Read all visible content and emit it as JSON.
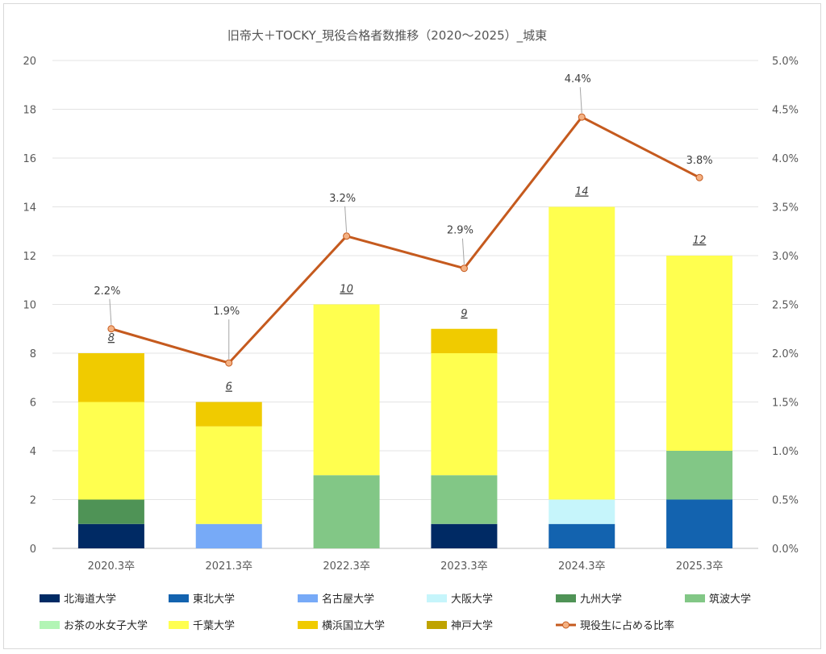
{
  "chart_data": {
    "type": "bar",
    "stacked": true,
    "title": "旧帝大＋TOCKY_現役合格者数推移（2020〜2025）_城東",
    "categories": [
      "2020.3卒",
      "2021.3卒",
      "2022.3卒",
      "2023.3卒",
      "2024.3卒",
      "2025.3卒"
    ],
    "ylim": [
      0,
      20
    ],
    "yticks": [
      "0",
      "2",
      "4",
      "6",
      "8",
      "10",
      "12",
      "14",
      "16",
      "18",
      "20"
    ],
    "y2lim": [
      0,
      5.0
    ],
    "y2ticks": [
      "0.0%",
      "0.5%",
      "1.0%",
      "1.5%",
      "2.0%",
      "2.5%",
      "3.0%",
      "3.5%",
      "4.0%",
      "4.5%",
      "5.0%"
    ],
    "grid": true,
    "legend_position": "bottom",
    "series": [
      {
        "name": "北海道大学",
        "color": "#002a64",
        "values": [
          1,
          0,
          0,
          1,
          0,
          0
        ]
      },
      {
        "name": "東北大学",
        "color": "#1363af",
        "values": [
          0,
          0,
          0,
          0,
          1,
          2
        ]
      },
      {
        "name": "名古屋大学",
        "color": "#77aaf7",
        "values": [
          0,
          1,
          0,
          0,
          0,
          0
        ]
      },
      {
        "name": "大阪大学",
        "color": "#c6f5fb",
        "values": [
          0,
          0,
          0,
          0,
          1,
          0
        ]
      },
      {
        "name": "九州大学",
        "color": "#4f9356",
        "values": [
          1,
          0,
          0,
          0,
          0,
          0
        ]
      },
      {
        "name": "筑波大学",
        "color": "#82c786",
        "values": [
          0,
          0,
          3,
          2,
          0,
          2
        ]
      },
      {
        "name": "お茶の水女子大学",
        "color": "#b2f5b5",
        "values": [
          0,
          0,
          0,
          0,
          0,
          0
        ]
      },
      {
        "name": "千葉大学",
        "color": "#ffff4f",
        "values": [
          4,
          4,
          7,
          5,
          12,
          8
        ]
      },
      {
        "name": "横浜国立大学",
        "color": "#f0cb00",
        "values": [
          2,
          1,
          0,
          1,
          0,
          0
        ]
      },
      {
        "name": "神戸大学",
        "color": "#bfa300",
        "values": [
          0,
          0,
          0,
          0,
          0,
          0
        ]
      }
    ],
    "totals": [
      8,
      6,
      10,
      9,
      14,
      12
    ],
    "line_series": {
      "name": "現役生に占める比率",
      "color": "#c55a1e",
      "marker_color": "#f4b183",
      "axis": "right",
      "values": [
        2.25,
        1.9,
        3.2,
        2.87,
        4.42,
        3.8
      ],
      "labels": [
        "2.2%",
        "1.9%",
        "3.2%",
        "2.9%",
        "4.4%",
        "3.8%"
      ]
    }
  }
}
